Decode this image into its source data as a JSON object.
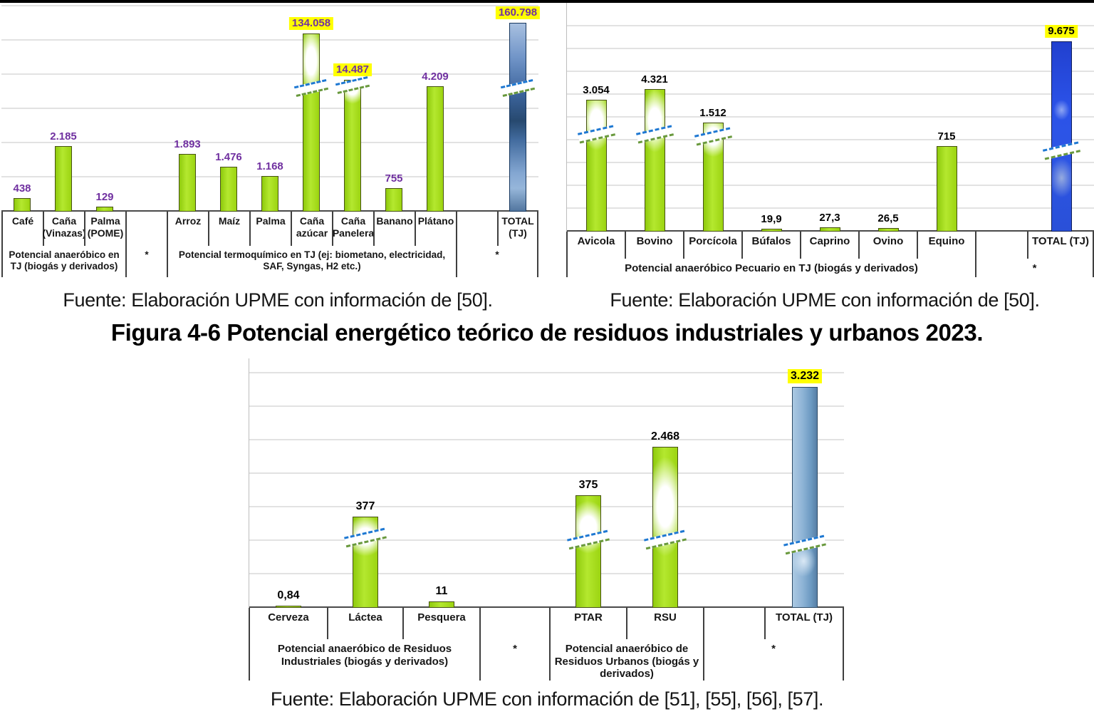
{
  "figure": {
    "title": "Figura 4-6 Potencial energético teórico de residuos industriales y urbanos 2023."
  },
  "captions": {
    "left": "Fuente: Elaboración UPME con información de [50].",
    "right": "Fuente: Elaboración UPME con información de [50].",
    "bottom": "Fuente: Elaboración UPME con información de [51], [55], [56], [57]."
  },
  "colors": {
    "bar_green": "#A4DC14",
    "bar_green_border": "#46511A",
    "total_bar_blue_agricola": "#4472A8",
    "total_bar_blue_pecuario": "#2B52E8",
    "total_bar_blue_industrial": "#7FA9CF",
    "value_label_purple": "#7030A0",
    "value_label_black": "#000000",
    "highlight_yellow": "#FFFF00",
    "break_dash_blue": "#1E78D2",
    "break_dash_green": "#69993D",
    "gridline_gray": "#E2E2E2"
  },
  "chart_data": [
    {
      "type": "bar",
      "name": "potencial-agricola",
      "unit": "TJ",
      "gridlines": true,
      "y_axis_labels_visible": false,
      "categories": [
        "Café",
        "Caña (Vinazas)",
        "Palma (POME)",
        "Arroz",
        "Maíz",
        "Palma",
        "Caña azúcar",
        "Caña Panelera",
        "Banano",
        "Plátano",
        "TOTAL (TJ)"
      ],
      "values": [
        438,
        2185,
        129,
        1893,
        1476,
        1168,
        134058,
        14487,
        755,
        4209,
        160798
      ],
      "value_labels": [
        "438",
        "2.185",
        "129",
        "1.893",
        "1.476",
        "1.168",
        "134.058",
        "14.487",
        "755",
        "4.209",
        "160.798"
      ],
      "highlighted": [
        false,
        false,
        false,
        false,
        false,
        false,
        true,
        true,
        false,
        false,
        true
      ],
      "axis_break_bars": [
        "Caña azúcar",
        "Caña Panelera",
        "TOTAL (TJ)"
      ],
      "total_bar": "TOTAL (TJ)",
      "groups": [
        {
          "label": "Potencial anaeróbico en TJ (biogás y derivados)",
          "span": 3
        },
        {
          "label": "*",
          "span": 1
        },
        {
          "label": "Potencial termoquímico en TJ (ej: biometano, electricidad, SAF, Syngas, H2 etc.)",
          "span": 7
        },
        {
          "label": "*",
          "span": 2
        }
      ]
    },
    {
      "type": "bar",
      "name": "potencial-pecuario",
      "unit": "TJ",
      "gridlines": true,
      "y_axis_labels_visible": false,
      "categories": [
        "Avicola",
        "Bovino",
        "Porcícola",
        "Búfalos",
        "Caprino",
        "Ovino",
        "Equino",
        "TOTAL (TJ)"
      ],
      "values": [
        3054,
        4321,
        1512,
        19.9,
        27.3,
        26.5,
        715,
        9675
      ],
      "value_labels": [
        "3.054",
        "4.321",
        "1.512",
        "19,9",
        "27,3",
        "26,5",
        "715",
        "9.675"
      ],
      "highlighted": [
        false,
        false,
        false,
        false,
        false,
        false,
        false,
        true
      ],
      "axis_break_bars": [
        "Avicola",
        "Bovino",
        "Porcícola",
        "TOTAL (TJ)"
      ],
      "total_bar": "TOTAL (TJ)",
      "groups": [
        {
          "label": "Potencial anaeróbico Pecuario en TJ (biogás y derivados)",
          "span": 7
        },
        {
          "label": "*",
          "span": 2
        }
      ]
    },
    {
      "type": "bar",
      "name": "potencial-industrial-urbano",
      "unit": "TJ",
      "gridlines": true,
      "y_axis_labels_visible": false,
      "categories": [
        "Cerveza",
        "Láctea",
        "Pesquera",
        "PTAR",
        "RSU",
        "TOTAL (TJ)"
      ],
      "values": [
        0.84,
        377,
        11,
        375,
        2468,
        3232
      ],
      "value_labels": [
        "0,84",
        "377",
        "11",
        "375",
        "2.468",
        "3.232"
      ],
      "highlighted": [
        false,
        false,
        false,
        false,
        false,
        true
      ],
      "axis_break_bars": [
        "Láctea",
        "PTAR",
        "RSU",
        "TOTAL (TJ)"
      ],
      "total_bar": "TOTAL (TJ)",
      "groups": [
        {
          "label": "Potencial anaeróbico de Residuos Industriales (biogás y derivados)",
          "span": 3
        },
        {
          "label": "*",
          "span": 1
        },
        {
          "label": "Potencial anaeróbico de Residuos Urbanos (biogás y derivados)",
          "span": 2
        },
        {
          "label": "*",
          "span": 2
        }
      ]
    }
  ]
}
